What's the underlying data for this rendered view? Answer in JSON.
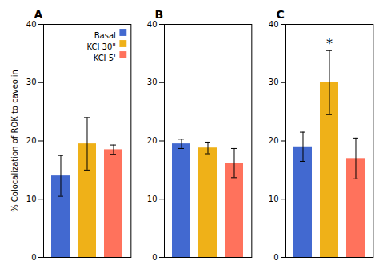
{
  "chart_data": [
    {
      "type": "bar",
      "title": "A",
      "ylabel": "% Colocalization of ROK to caveolin",
      "ylim": [
        0,
        40
      ],
      "yticks": [
        0,
        10,
        20,
        30,
        40
      ],
      "tick_labels": "y",
      "legend": "upper right",
      "series": [
        {
          "name": "Basal",
          "values": [
            14.0
          ],
          "errors": [
            3.5
          ]
        },
        {
          "name": "KCI 30\"",
          "values": [
            19.5
          ],
          "errors": [
            4.5
          ]
        },
        {
          "name": "KCI 5'",
          "values": [
            18.5
          ],
          "errors": [
            0.8
          ]
        }
      ]
    },
    {
      "type": "bar",
      "title": "B",
      "ylim": [
        0,
        40
      ],
      "yticks": [
        0,
        10,
        20,
        30,
        40
      ],
      "tick_labels": "y",
      "series": [
        {
          "name": "Basal",
          "values": [
            19.5
          ],
          "errors": [
            0.8
          ]
        },
        {
          "name": "KCI 30\"",
          "values": [
            18.8
          ],
          "errors": [
            1.0
          ]
        },
        {
          "name": "KCI 5'",
          "values": [
            16.2
          ],
          "errors": [
            2.5
          ]
        }
      ]
    },
    {
      "type": "bar",
      "title": "C",
      "ylim": [
        0,
        40
      ],
      "yticks": [
        0,
        10,
        20,
        30,
        40
      ],
      "tick_labels": "y",
      "annotations": [
        {
          "text": "*",
          "series": "KCI 30\""
        }
      ],
      "series": [
        {
          "name": "Basal",
          "values": [
            19.0
          ],
          "errors": [
            2.5
          ]
        },
        {
          "name": "KCI 30\"",
          "values": [
            30.0
          ],
          "errors": [
            5.5
          ]
        },
        {
          "name": "KCI 5'",
          "values": [
            17.0
          ],
          "errors": [
            3.5
          ]
        }
      ]
    }
  ]
}
